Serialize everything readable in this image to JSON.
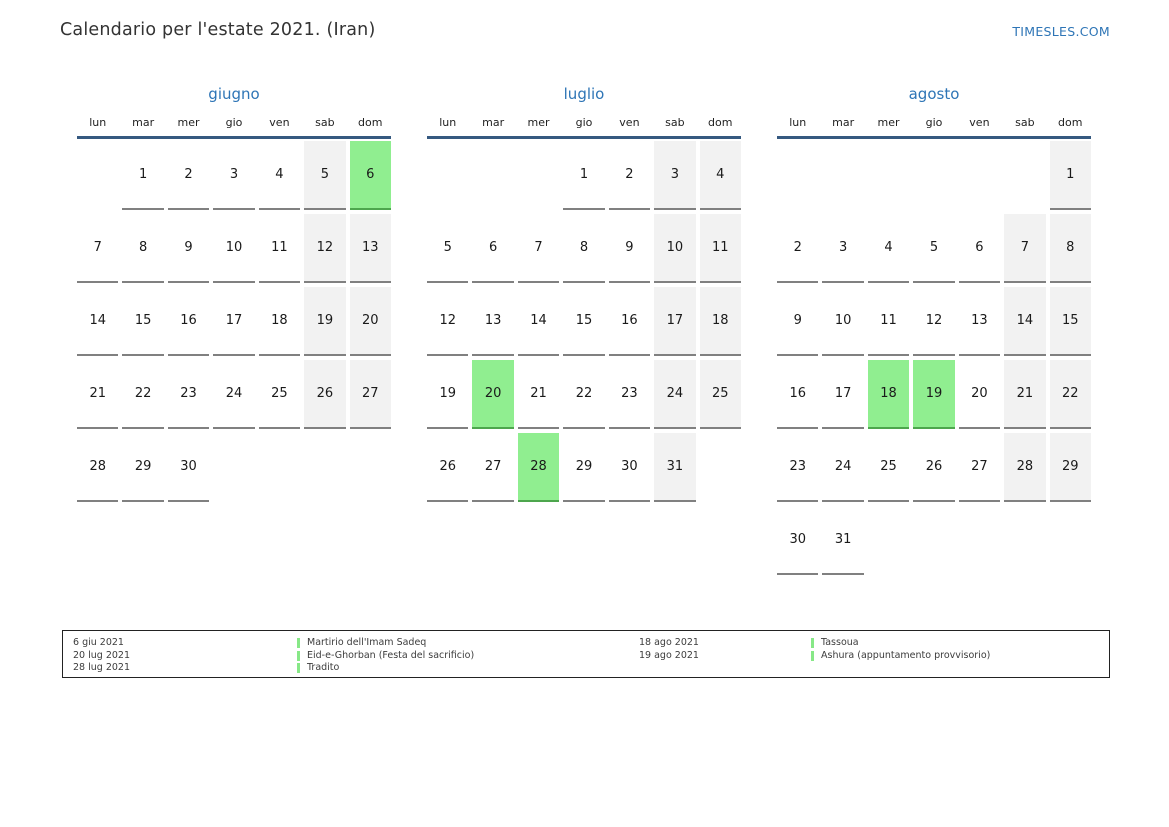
{
  "page": {
    "title": "Calendario per l'estate 2021. (Iran)",
    "site_link": "TIMESLES.COM"
  },
  "colors": {
    "accent_blue": "#2e75b6",
    "header_line_navy": "#355980",
    "highlight_green": "#90ee90",
    "weekend_gray": "#f2f2f2",
    "cell_underline_gray": "#808080",
    "legend_bar_green": "#87e887"
  },
  "weekdays": [
    "lun",
    "mar",
    "mer",
    "gio",
    "ven",
    "sab",
    "dom"
  ],
  "months": [
    {
      "name": "giugno",
      "highlighted": [
        6
      ],
      "weeks": [
        [
          null,
          1,
          2,
          3,
          4,
          5,
          6
        ],
        [
          7,
          8,
          9,
          10,
          11,
          12,
          13
        ],
        [
          14,
          15,
          16,
          17,
          18,
          19,
          20
        ],
        [
          21,
          22,
          23,
          24,
          25,
          26,
          27
        ],
        [
          28,
          29,
          30,
          null,
          null,
          null,
          null
        ]
      ]
    },
    {
      "name": "luglio",
      "highlighted": [
        20,
        28
      ],
      "weeks": [
        [
          null,
          null,
          null,
          1,
          2,
          3,
          4
        ],
        [
          5,
          6,
          7,
          8,
          9,
          10,
          11
        ],
        [
          12,
          13,
          14,
          15,
          16,
          17,
          18
        ],
        [
          19,
          20,
          21,
          22,
          23,
          24,
          25
        ],
        [
          26,
          27,
          28,
          29,
          30,
          31,
          null
        ]
      ]
    },
    {
      "name": "agosto",
      "highlighted": [
        18,
        19
      ],
      "weeks": [
        [
          null,
          null,
          null,
          null,
          null,
          null,
          1
        ],
        [
          2,
          3,
          4,
          5,
          6,
          7,
          8
        ],
        [
          9,
          10,
          11,
          12,
          13,
          14,
          15
        ],
        [
          16,
          17,
          18,
          19,
          20,
          21,
          22
        ],
        [
          23,
          24,
          25,
          26,
          27,
          28,
          29
        ],
        [
          30,
          31,
          null,
          null,
          null,
          null,
          null
        ]
      ]
    }
  ],
  "legend": {
    "columns": [
      {
        "entries": [
          {
            "date": "6 giu 2021",
            "event": "Martirio dell'Imam Sadeq"
          },
          {
            "date": "20 lug 2021",
            "event": "Eid-e-Ghorban (Festa del sacrificio)"
          },
          {
            "date": "28 lug 2021",
            "event": "Tradito"
          }
        ]
      },
      {
        "entries": [
          {
            "date": "18 ago 2021",
            "event": "Tassoua"
          },
          {
            "date": "19 ago 2021",
            "event": "Ashura (appuntamento provvisorio)"
          }
        ]
      }
    ]
  }
}
